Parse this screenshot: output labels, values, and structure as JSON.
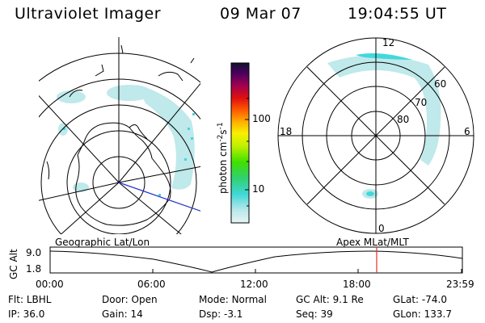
{
  "header": {
    "instrument": "Ultraviolet Imager",
    "date": "09 Mar 07",
    "time": "19:04:55 UT"
  },
  "colorbar": {
    "unit_label": "photon cm",
    "unit_exp1": "-2",
    "unit_mid": "s",
    "unit_exp2": "-1",
    "ticks": [
      "100",
      "10"
    ]
  },
  "polar_plot": {
    "mlt_labels": {
      "top": "12",
      "bottom": "0",
      "left": "18",
      "right": "6"
    },
    "mlat_labels": [
      "60",
      "70",
      "80"
    ]
  },
  "timeline": {
    "y_axis_label": "GC Alt",
    "y_ticks": [
      "9.0",
      "1.8"
    ],
    "left_caption": "Geographic Lat/Lon",
    "right_caption": "Apex MLat/MLT",
    "x_ticks": [
      "00:00",
      "06:00",
      "12:00",
      "18:00",
      "23:59"
    ],
    "current_marker": "19:04:55"
  },
  "status": {
    "row1": [
      {
        "key": "Flt:",
        "val": "LBHL"
      },
      {
        "key": "Door:",
        "val": "Open"
      },
      {
        "key": "Mode:",
        "val": "Normal"
      },
      {
        "key": "GC Alt:",
        "val": "9.1 Re"
      },
      {
        "key": "GLat:",
        "val": "-74.0"
      }
    ],
    "row2": [
      {
        "key": "IP:",
        "val": "36.0"
      },
      {
        "key": "Gain:",
        "val": "14"
      },
      {
        "key": "Dsp:",
        "val": "-3.1"
      },
      {
        "key": "Seq:",
        "val": "39"
      },
      {
        "key": "GLon:",
        "val": "133.7"
      }
    ]
  },
  "colors": {
    "aurora": "#bfe9ea",
    "aurora_bright": "#44d7dc",
    "marker": "#e03030",
    "nav_line": "#2233cc"
  }
}
